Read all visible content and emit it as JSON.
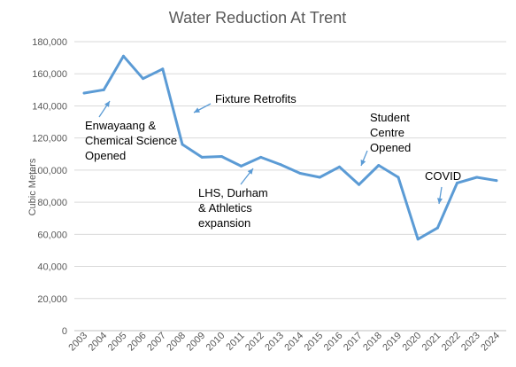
{
  "chart_data": {
    "type": "line",
    "title": "Water Reduction At Trent",
    "xlabel": "",
    "ylabel": "Cubic Meters",
    "ylim": [
      0,
      180000
    ],
    "yticks": [
      "0",
      "20,000",
      "40,000",
      "60,000",
      "80,000",
      "100,000",
      "120,000",
      "140,000",
      "160,000",
      "180,000"
    ],
    "categories": [
      "2003",
      "2004",
      "2005",
      "2006",
      "2007",
      "2008",
      "2009",
      "2010",
      "2011",
      "2012",
      "2013",
      "2014",
      "2015",
      "2016",
      "2017",
      "2018",
      "2019",
      "2020",
      "2021",
      "2022",
      "2023",
      "2024"
    ],
    "series": [
      {
        "values": [
          148000,
          150000,
          171000,
          157000,
          163000,
          116000,
          108000,
          108500,
          102500,
          108000,
          103500,
          98000,
          95500,
          102000,
          91000,
          103000,
          95500,
          57000,
          64000,
          92000,
          95500,
          93500
        ],
        "color": "#5b9bd5"
      }
    ],
    "grid": true,
    "legend": "none",
    "annotations": [
      {
        "lines": [
          "Enwayaang &",
          "Chemical Science",
          "Opened"
        ],
        "points_to": "2004"
      },
      {
        "lines": [
          "Fixture Retrofits"
        ],
        "points_to": "2008"
      },
      {
        "lines": [
          "LHS, Durham",
          "& Athletics",
          "expansion"
        ],
        "points_to": "2012"
      },
      {
        "lines": [
          "Student",
          "Centre",
          "Opened"
        ],
        "points_to": "2017"
      },
      {
        "lines": [
          "COVID"
        ],
        "points_to": "2021"
      }
    ]
  }
}
